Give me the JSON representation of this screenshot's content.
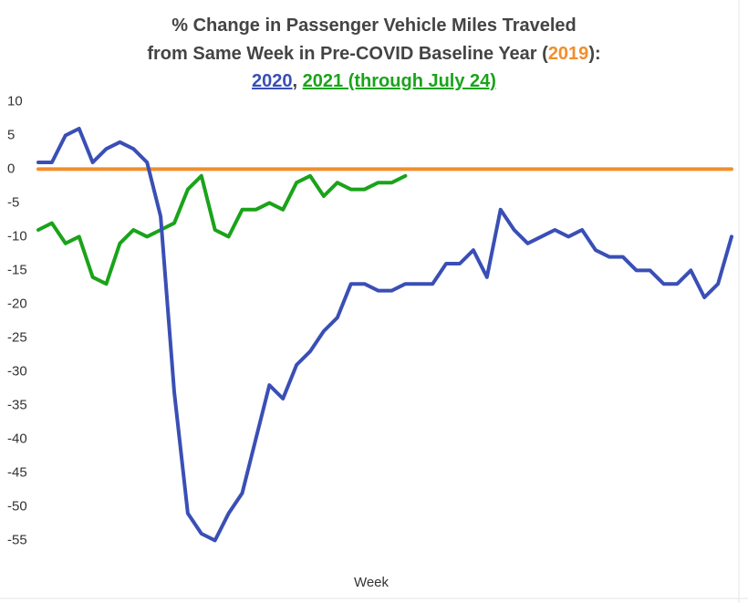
{
  "chart_data": {
    "type": "line",
    "title_line1": "% Change in Passenger Vehicle Miles Traveled",
    "title_line2": "from Same Week in Pre-COVID Baseline Year (",
    "title_line2_end": "):",
    "legend_separator": ", ",
    "x_label": "Week",
    "categories": [
      null,
      null,
      null,
      null,
      null,
      null,
      null,
      null,
      null,
      null,
      null,
      null,
      null,
      null,
      null,
      null,
      null,
      null,
      null,
      null,
      null,
      null,
      null,
      null,
      null,
      null,
      null,
      null,
      null,
      null,
      null,
      null,
      null,
      null,
      null,
      null,
      null,
      null,
      null,
      null,
      null,
      null,
      null,
      null,
      null,
      null,
      null,
      null,
      null,
      null,
      null,
      null
    ],
    "series": [
      {
        "name": "2020",
        "color": "#3a4fb5",
        "values": [
          1,
          1,
          5,
          6,
          1,
          3,
          4,
          3,
          1,
          -7,
          -33,
          -51,
          -54,
          -55,
          -51,
          -48,
          -40,
          -32,
          -34,
          -29,
          -27,
          -24,
          -22,
          -17,
          -17,
          -18,
          -18,
          -17,
          -17,
          -17,
          -14,
          -14,
          -12,
          -16,
          -6,
          -9,
          -11,
          -10,
          -9,
          -10,
          -9,
          -12,
          -13,
          -13,
          -15,
          -15,
          -17,
          -17,
          -15,
          -19,
          -17,
          -10
        ]
      },
      {
        "name": "2021 (through July 24)",
        "color": "#1aa31a",
        "values": [
          -9,
          -8,
          -11,
          -10,
          -16,
          -17,
          -11,
          -9,
          -10,
          -9,
          -8,
          -3,
          -1,
          -9,
          -10,
          -6,
          -6,
          -5,
          -6,
          -2,
          -1,
          -4,
          -2,
          -3,
          -3,
          -2,
          -2,
          -1,
          null,
          null,
          null,
          null,
          null,
          null,
          null,
          null,
          null,
          null,
          null,
          null,
          null,
          null,
          null,
          null,
          null,
          null,
          null,
          null,
          null,
          null,
          null,
          null
        ]
      },
      {
        "name": "2019",
        "color": "#f28e2b",
        "values": [
          0,
          0,
          0,
          0,
          0,
          0,
          0,
          0,
          0,
          0,
          0,
          0,
          0,
          0,
          0,
          0,
          0,
          0,
          0,
          0,
          0,
          0,
          0,
          0,
          0,
          0,
          0,
          0,
          0,
          0,
          0,
          0,
          0,
          0,
          0,
          0,
          0,
          0,
          0,
          0,
          0,
          0,
          0,
          0,
          0,
          0,
          0,
          0,
          0,
          0,
          0,
          0
        ]
      }
    ],
    "ylim": [
      -59,
      11
    ],
    "yticks": [
      10,
      5,
      0,
      -5,
      -10,
      -15,
      -20,
      -25,
      -30,
      -35,
      -40,
      -45,
      -50,
      -55
    ],
    "grid": false
  }
}
